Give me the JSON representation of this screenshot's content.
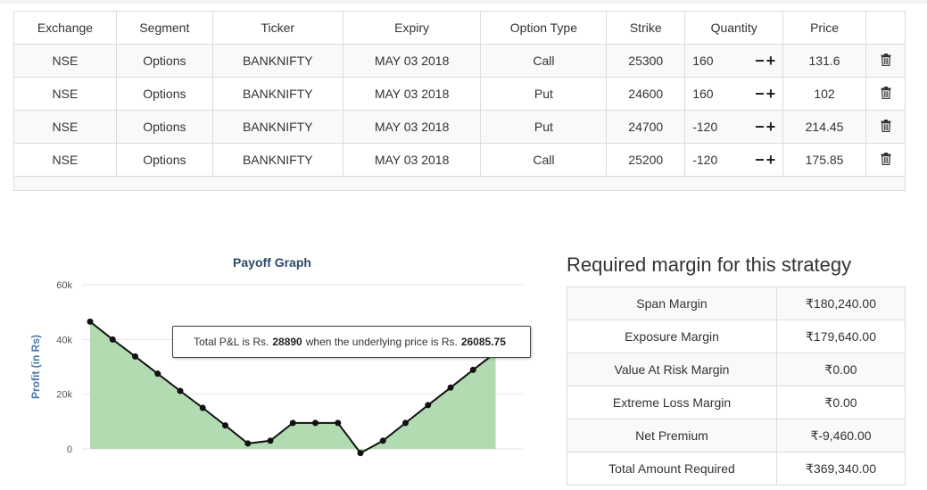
{
  "legs_table": {
    "headers": [
      "Exchange",
      "Segment",
      "Ticker",
      "Expiry",
      "Option Type",
      "Strike",
      "Quantity",
      "Price",
      ""
    ],
    "rows": [
      {
        "exchange": "NSE",
        "segment": "Options",
        "ticker": "BANKNIFTY",
        "expiry": "MAY 03 2018",
        "option_type": "Call",
        "strike": "25300",
        "quantity": "160",
        "price": "131.6"
      },
      {
        "exchange": "NSE",
        "segment": "Options",
        "ticker": "BANKNIFTY",
        "expiry": "MAY 03 2018",
        "option_type": "Put",
        "strike": "24600",
        "quantity": "160",
        "price": "102"
      },
      {
        "exchange": "NSE",
        "segment": "Options",
        "ticker": "BANKNIFTY",
        "expiry": "MAY 03 2018",
        "option_type": "Put",
        "strike": "24700",
        "quantity": "-120",
        "price": "214.45"
      },
      {
        "exchange": "NSE",
        "segment": "Options",
        "ticker": "BANKNIFTY",
        "expiry": "MAY 03 2018",
        "option_type": "Call",
        "strike": "25200",
        "quantity": "-120",
        "price": "175.85"
      }
    ],
    "stepper": {
      "minus": "−",
      "plus": "+"
    },
    "delete_icon": "trash-icon"
  },
  "chart_data": {
    "type": "area",
    "title": "Payoff Graph",
    "ylabel": "Profit (in Rs)",
    "xlabel": "",
    "ylim": [
      0,
      60000
    ],
    "yticks": [
      0,
      20000,
      40000,
      60000
    ],
    "ytick_labels": [
      "0",
      "20k",
      "40k",
      "60k"
    ],
    "grid": true,
    "series": [
      {
        "values": [
          46500,
          40000,
          33800,
          27500,
          21200,
          15000,
          8600,
          2000,
          3000,
          9500,
          9500,
          9500,
          -1500,
          3000,
          9500,
          16000,
          22400,
          28890,
          35200
        ]
      }
    ],
    "colors": {
      "line": "#111111",
      "fill": "#b2dbb2",
      "point": "#111111",
      "title": "#2c4a6a",
      "ylabel": "#4a76a8"
    },
    "tooltip": {
      "prefix": "Total P&L is Rs.",
      "pnl": "28890",
      "middle": "when the underlying price is Rs.",
      "price": "26085.75"
    }
  },
  "margin_panel": {
    "title": "Required margin for this strategy",
    "rows": [
      {
        "label": "Span Margin",
        "value": "₹180,240.00"
      },
      {
        "label": "Exposure Margin",
        "value": "₹179,640.00"
      },
      {
        "label": "Value At Risk Margin",
        "value": "₹0.00"
      },
      {
        "label": "Extreme Loss Margin",
        "value": "₹0.00"
      },
      {
        "label": "Net Premium",
        "value": "₹-9,460.00"
      },
      {
        "label": "Total Amount Required",
        "value": "₹369,340.00"
      }
    ]
  }
}
